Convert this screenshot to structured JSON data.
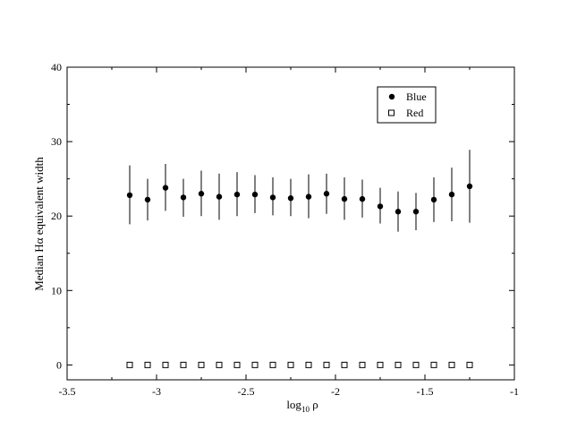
{
  "chart_data": {
    "type": "scatter",
    "xlabel": {
      "main": "log",
      "sub": "10",
      "tail": " ρ"
    },
    "ylabel": "Median Hα equivalent width",
    "xlim": [
      -3.5,
      -1
    ],
    "ylim": [
      -2,
      40
    ],
    "xticks": [
      -3.5,
      -3,
      -2.5,
      -2,
      -1.5,
      -1
    ],
    "xtick_labels": [
      "-3.5",
      "-3",
      "-2.5",
      "-2",
      "-1.5",
      "-1"
    ],
    "yticks": [
      0,
      10,
      20,
      30,
      40
    ],
    "ytick_labels": [
      "0",
      "10",
      "20",
      "30",
      "40"
    ],
    "grid": false,
    "legend_position": "top-right",
    "series": [
      {
        "name": "Blue",
        "marker": "filled-circle",
        "color": "#000000",
        "x": [
          -3.15,
          -3.05,
          -2.95,
          -2.85,
          -2.75,
          -2.65,
          -2.55,
          -2.45,
          -2.35,
          -2.25,
          -2.15,
          -2.05,
          -1.95,
          -1.85,
          -1.75,
          -1.65,
          -1.55,
          -1.45,
          -1.35,
          -1.25
        ],
        "y": [
          22.8,
          22.2,
          23.8,
          22.5,
          23.0,
          22.6,
          22.9,
          22.9,
          22.5,
          22.4,
          22.6,
          23.0,
          22.3,
          22.3,
          21.3,
          20.6,
          20.6,
          22.2,
          22.9,
          24.0
        ],
        "yerr_low": [
          18.9,
          19.4,
          20.7,
          19.9,
          20.0,
          19.5,
          20.0,
          20.4,
          20.1,
          20.0,
          19.7,
          20.3,
          19.5,
          19.8,
          19.0,
          17.9,
          18.1,
          19.2,
          19.3,
          19.1
        ],
        "yerr_high": [
          26.8,
          25.0,
          27.0,
          25.0,
          26.1,
          25.7,
          25.9,
          25.5,
          25.2,
          25.0,
          25.6,
          25.7,
          25.2,
          24.9,
          23.8,
          23.3,
          23.1,
          25.2,
          26.5,
          28.9
        ]
      },
      {
        "name": "Red",
        "marker": "open-square",
        "color": "#000000",
        "x": [
          -3.15,
          -3.05,
          -2.95,
          -2.85,
          -2.75,
          -2.65,
          -2.55,
          -2.45,
          -2.35,
          -2.25,
          -2.15,
          -2.05,
          -1.95,
          -1.85,
          -1.75,
          -1.65,
          -1.55,
          -1.45,
          -1.35,
          -1.25
        ],
        "y": [
          0,
          0,
          0,
          0,
          0,
          0,
          0,
          0,
          0,
          0,
          0,
          0,
          0,
          0,
          0,
          0,
          0,
          0,
          0,
          0
        ]
      }
    ]
  }
}
